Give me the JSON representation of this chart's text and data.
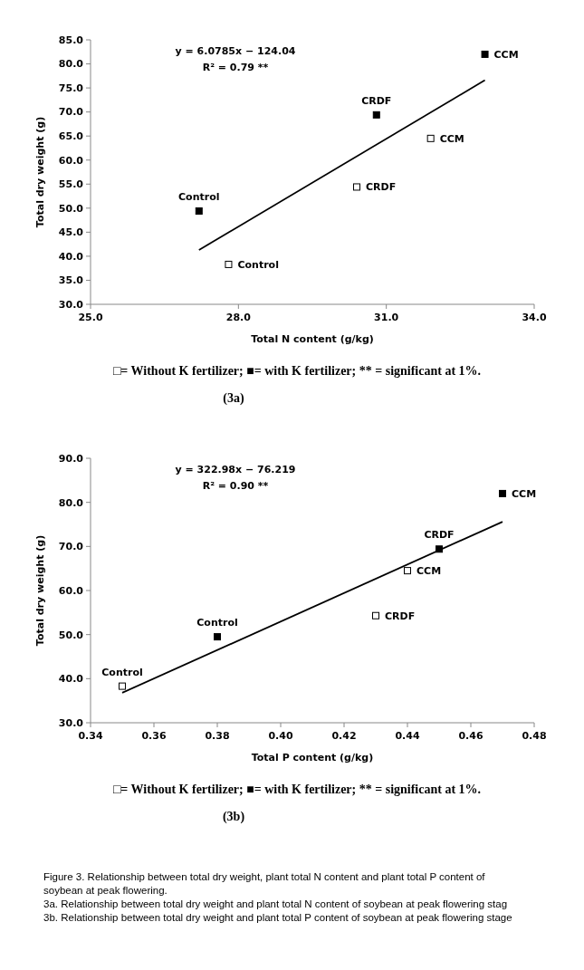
{
  "chart_data": [
    {
      "type": "scatter",
      "xlabel": "Total N content (g/kg)",
      "ylabel": "Total dry weight (g)",
      "marker": "square",
      "grid": false,
      "xlim": [
        25,
        34
      ],
      "xticks": [
        {
          "value": 25,
          "label": "25.0"
        },
        {
          "value": 28,
          "label": "28.0"
        },
        {
          "value": 31,
          "label": "31.0"
        },
        {
          "value": 34,
          "label": "34.0"
        }
      ],
      "ylim": [
        30,
        85
      ],
      "yticks": [
        {
          "value": 30,
          "label": "30.0"
        },
        {
          "value": 35,
          "label": "35.0"
        },
        {
          "value": 40,
          "label": "40.0"
        },
        {
          "value": 45,
          "label": "45.0"
        },
        {
          "value": 50,
          "label": "50.0"
        },
        {
          "value": 55,
          "label": "55.0"
        },
        {
          "value": 60,
          "label": "60.0"
        },
        {
          "value": 65,
          "label": "65.0"
        },
        {
          "value": 70,
          "label": "70.0"
        },
        {
          "value": 75,
          "label": "75.0"
        },
        {
          "value": 80,
          "label": "80.0"
        },
        {
          "value": 85,
          "label": "85.0"
        }
      ],
      "series": [
        {
          "color": "#ffffff",
          "x": [
            27.8,
            30.4,
            31.9
          ],
          "values": [
            38.3,
            54.4,
            64.5
          ]
        },
        {
          "color": "#000000",
          "x": [
            27.2,
            30.8,
            33.0
          ],
          "values": [
            49.4,
            69.4,
            82.0
          ]
        },
        {
          "type": "line",
          "color": "#000000",
          "marker": "none",
          "x": [
            27.2,
            33.0
          ],
          "values": [
            41.3,
            76.6
          ]
        }
      ],
      "annotations": [
        "y = 6.0785x − 124.04",
        "R² = 0.79 **",
        "□= Without K fertilizer; ■= with K fertilizer; ** = significant at 1%.",
        "(3a)",
        {
          "text": "Control",
          "x": 27.8,
          "y": 38.3
        },
        {
          "text": "CRDF",
          "x": 30.4,
          "y": 54.4
        },
        {
          "text": "CCM",
          "x": 31.9,
          "y": 64.5
        },
        {
          "text": "Control",
          "x": 27.2,
          "y": 49.4
        },
        {
          "text": "CRDF",
          "x": 30.8,
          "y": 69.4
        },
        {
          "text": "CCM",
          "x": 33.0,
          "y": 82.0
        }
      ]
    },
    {
      "type": "scatter",
      "xlabel": "Total P content (g/kg)",
      "ylabel": "Total dry weight (g)",
      "marker": "square",
      "grid": false,
      "xlim": [
        0.34,
        0.48
      ],
      "xticks": [
        0.34,
        0.36,
        {
          "value": 0.38,
          "label": "0.38"
        },
        {
          "value": 0.4,
          "label": "0.40"
        },
        0.42,
        0.44,
        0.46,
        0.48
      ],
      "ylim": [
        30,
        90
      ],
      "yticks": [
        {
          "value": 30,
          "label": "30.0"
        },
        {
          "value": 40,
          "label": "40.0"
        },
        {
          "value": 50,
          "label": "50.0"
        },
        {
          "value": 60,
          "label": "60.0"
        },
        {
          "value": 70,
          "label": "70.0"
        },
        {
          "value": 80,
          "label": "80.0"
        },
        {
          "value": 90,
          "label": "90.0"
        }
      ],
      "series": [
        {
          "color": "#ffffff",
          "x": [
            0.35,
            0.43,
            0.44
          ],
          "values": [
            38.3,
            54.3,
            64.5
          ]
        },
        {
          "color": "#000000",
          "x": [
            0.38,
            0.45,
            0.47
          ],
          "values": [
            49.5,
            69.4,
            82.0
          ]
        },
        {
          "type": "line",
          "color": "#000000",
          "marker": "none",
          "x": [
            0.35,
            0.47
          ],
          "values": [
            36.8,
            75.6
          ]
        }
      ],
      "annotations": [
        "y = 322.98x − 76.219",
        "R² = 0.90 **",
        "□= Without K fertilizer; ■= with K fertilizer; ** = significant at 1%.",
        "(3b)",
        "Figure 3. Relationship between total dry weight, plant total N content and plant total P content of soybean at peak flowering.",
        "3a. Relationship between total dry weight and plant total N content of soybean at peak flowering stag",
        "3b. Relationship between total dry weight and plant total P content of soybean at peak flowering stage",
        {
          "text": "Control",
          "x": 0.35,
          "y": 38.3
        },
        {
          "text": "CRDF",
          "x": 0.43,
          "y": 54.3
        },
        {
          "text": "CCM",
          "x": 0.44,
          "y": 64.5
        },
        {
          "text": "Control",
          "x": 0.38,
          "y": 49.5
        },
        {
          "text": "CRDF",
          "x": 0.45,
          "y": 69.4
        },
        {
          "text": "CCM",
          "x": 0.47,
          "y": 82.0
        }
      ]
    }
  ]
}
